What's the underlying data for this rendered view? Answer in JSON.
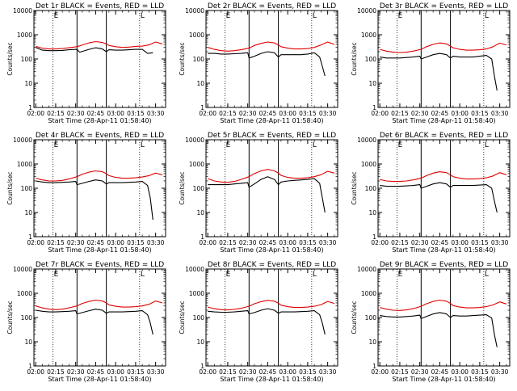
{
  "colors": {
    "events": "#000000",
    "lld": "#e00000",
    "axis": "#000000",
    "background": "#ffffff"
  },
  "chart_common": {
    "type": "line",
    "xlabel": "Start Time (28-Apr-11 01:58:40)",
    "ylabel": "Counts/sec",
    "xtick_labels": [
      "02:00",
      "02:15",
      "02:30",
      "02:45",
      "03:00",
      "03:15",
      "03:30"
    ],
    "xlim_minutes": [
      -1.33,
      97.5
    ],
    "ytick_labels": [
      "1",
      "10",
      "100",
      "1000",
      "10000"
    ],
    "ylim": [
      1,
      10000
    ],
    "yscale": "log",
    "dotted_vlines_clock": [
      "02:13",
      "03:18"
    ],
    "solid_vlines_clock": [
      "02:31",
      "02:53"
    ],
    "markers": {
      "left": "E",
      "right": "L"
    }
  },
  "chart_data": [
    {
      "type": "line",
      "title": "Det 1r BLACK = Events, RED = LLD",
      "series": [
        {
          "name": "Events",
          "color": "#000000",
          "x": [
            0,
            5,
            10,
            15,
            20,
            25,
            31,
            33,
            40,
            45,
            50,
            53,
            55,
            60,
            65,
            70,
            75,
            80,
            84,
            88
          ],
          "y": [
            300,
            230,
            220,
            220,
            225,
            240,
            250,
            190,
            250,
            290,
            260,
            200,
            240,
            230,
            230,
            240,
            250,
            250,
            170,
            180
          ]
        },
        {
          "name": "LLD",
          "color": "#e00000",
          "x": [
            0,
            5,
            10,
            15,
            20,
            25,
            31,
            35,
            40,
            45,
            50,
            53,
            55,
            60,
            65,
            70,
            75,
            80,
            85,
            90,
            95
          ],
          "y": [
            330,
            280,
            260,
            260,
            270,
            290,
            320,
            380,
            460,
            520,
            480,
            420,
            360,
            320,
            300,
            310,
            330,
            340,
            380,
            500,
            420
          ]
        }
      ]
    },
    {
      "type": "line",
      "title": "Det 2r BLACK = Events, RED = LLD",
      "series": [
        {
          "name": "Events",
          "color": "#000000",
          "x": [
            0,
            5,
            10,
            15,
            20,
            25,
            30,
            31,
            35,
            40,
            45,
            50,
            53,
            55,
            60,
            65,
            70,
            75,
            80,
            84,
            86,
            88
          ],
          "y": [
            170,
            170,
            160,
            160,
            165,
            170,
            180,
            110,
            130,
            170,
            200,
            180,
            120,
            150,
            150,
            150,
            150,
            160,
            180,
            120,
            50,
            20
          ]
        },
        {
          "name": "LLD",
          "color": "#e00000",
          "x": [
            0,
            5,
            10,
            15,
            20,
            25,
            31,
            35,
            40,
            45,
            50,
            53,
            55,
            60,
            65,
            70,
            75,
            80,
            85,
            90,
            95
          ],
          "y": [
            300,
            250,
            220,
            210,
            220,
            240,
            280,
            360,
            440,
            500,
            460,
            380,
            320,
            280,
            260,
            260,
            270,
            300,
            380,
            500,
            400
          ]
        }
      ]
    },
    {
      "type": "line",
      "title": "Det 3r BLACK = Events, RED = LLD",
      "series": [
        {
          "name": "Events",
          "color": "#000000",
          "x": [
            0,
            5,
            10,
            15,
            20,
            25,
            30,
            31,
            35,
            40,
            45,
            50,
            53,
            55,
            60,
            65,
            70,
            75,
            80,
            84,
            86,
            88
          ],
          "y": [
            120,
            110,
            110,
            110,
            115,
            120,
            130,
            100,
            120,
            150,
            170,
            150,
            110,
            130,
            120,
            120,
            120,
            130,
            140,
            100,
            20,
            5
          ]
        },
        {
          "name": "LLD",
          "color": "#e00000",
          "x": [
            0,
            5,
            10,
            15,
            20,
            25,
            31,
            35,
            40,
            45,
            50,
            53,
            55,
            60,
            65,
            70,
            75,
            80,
            85,
            90,
            95
          ],
          "y": [
            250,
            210,
            190,
            185,
            190,
            210,
            250,
            320,
            400,
            460,
            420,
            340,
            290,
            250,
            230,
            230,
            240,
            260,
            320,
            450,
            380
          ]
        }
      ]
    },
    {
      "type": "line",
      "title": "Det 4r BLACK = Events, RED = LLD",
      "series": [
        {
          "name": "Events",
          "color": "#000000",
          "x": [
            0,
            5,
            10,
            15,
            20,
            25,
            30,
            31,
            35,
            40,
            45,
            50,
            53,
            55,
            60,
            65,
            70,
            75,
            80,
            84,
            86,
            88
          ],
          "y": [
            200,
            180,
            170,
            170,
            175,
            180,
            190,
            140,
            160,
            190,
            220,
            200,
            150,
            170,
            170,
            170,
            175,
            180,
            190,
            130,
            40,
            5
          ]
        },
        {
          "name": "LLD",
          "color": "#e00000",
          "x": [
            0,
            5,
            10,
            15,
            20,
            25,
            31,
            35,
            40,
            45,
            50,
            53,
            55,
            60,
            65,
            70,
            75,
            80,
            85,
            90,
            95
          ],
          "y": [
            260,
            220,
            200,
            200,
            210,
            240,
            300,
            380,
            460,
            520,
            480,
            400,
            330,
            280,
            260,
            260,
            270,
            290,
            330,
            420,
            360
          ]
        }
      ]
    },
    {
      "type": "line",
      "title": "Det 5r BLACK = Events, RED = LLD",
      "series": [
        {
          "name": "Events",
          "color": "#000000",
          "x": [
            0,
            5,
            10,
            15,
            20,
            25,
            30,
            31,
            35,
            40,
            45,
            50,
            53,
            55,
            60,
            65,
            70,
            75,
            80,
            84,
            86,
            88
          ],
          "y": [
            140,
            140,
            140,
            140,
            150,
            160,
            170,
            110,
            150,
            230,
            300,
            230,
            140,
            180,
            200,
            210,
            220,
            230,
            250,
            160,
            40,
            10
          ]
        },
        {
          "name": "LLD",
          "color": "#e00000",
          "x": [
            0,
            5,
            10,
            15,
            20,
            25,
            31,
            35,
            40,
            45,
            50,
            53,
            55,
            60,
            65,
            70,
            75,
            80,
            85,
            90,
            95
          ],
          "y": [
            250,
            200,
            180,
            175,
            190,
            230,
            300,
            400,
            520,
            600,
            520,
            420,
            340,
            280,
            260,
            260,
            270,
            300,
            360,
            500,
            420
          ]
        }
      ]
    },
    {
      "type": "line",
      "title": "Det 6r BLACK = Events, RED = LLD",
      "series": [
        {
          "name": "Events",
          "color": "#000000",
          "x": [
            0,
            5,
            10,
            15,
            20,
            25,
            30,
            31,
            35,
            40,
            45,
            50,
            53,
            55,
            60,
            65,
            70,
            75,
            80,
            84,
            86,
            88
          ],
          "y": [
            130,
            120,
            120,
            120,
            125,
            130,
            140,
            100,
            120,
            150,
            170,
            150,
            110,
            130,
            130,
            130,
            130,
            135,
            140,
            100,
            30,
            10
          ]
        },
        {
          "name": "LLD",
          "color": "#e00000",
          "x": [
            0,
            5,
            10,
            15,
            20,
            25,
            31,
            35,
            40,
            45,
            50,
            53,
            55,
            60,
            65,
            70,
            75,
            80,
            85,
            90,
            95
          ],
          "y": [
            230,
            200,
            190,
            190,
            200,
            220,
            260,
            330,
            420,
            480,
            440,
            360,
            300,
            260,
            240,
            240,
            250,
            270,
            320,
            440,
            360
          ]
        }
      ]
    },
    {
      "type": "line",
      "title": "Det 7r BLACK = Events, RED = LLD",
      "series": [
        {
          "name": "Events",
          "color": "#000000",
          "x": [
            0,
            5,
            10,
            15,
            20,
            25,
            30,
            31,
            35,
            40,
            45,
            50,
            53,
            55,
            60,
            65,
            70,
            75,
            80,
            84,
            86,
            88
          ],
          "y": [
            200,
            180,
            170,
            170,
            175,
            180,
            190,
            140,
            160,
            190,
            220,
            200,
            150,
            170,
            170,
            170,
            175,
            180,
            190,
            130,
            60,
            20
          ]
        },
        {
          "name": "LLD",
          "color": "#e00000",
          "x": [
            0,
            5,
            10,
            15,
            20,
            25,
            31,
            35,
            40,
            45,
            50,
            53,
            55,
            60,
            65,
            70,
            75,
            80,
            85,
            90,
            95
          ],
          "y": [
            300,
            250,
            220,
            210,
            220,
            250,
            300,
            380,
            460,
            520,
            480,
            400,
            330,
            290,
            270,
            270,
            280,
            300,
            350,
            480,
            400
          ]
        }
      ]
    },
    {
      "type": "line",
      "title": "Det 8r BLACK = Events, RED = LLD",
      "series": [
        {
          "name": "Events",
          "color": "#000000",
          "x": [
            0,
            5,
            10,
            15,
            20,
            25,
            30,
            31,
            35,
            40,
            45,
            50,
            53,
            55,
            60,
            65,
            70,
            75,
            80,
            84,
            86,
            88
          ],
          "y": [
            180,
            170,
            165,
            165,
            170,
            180,
            190,
            140,
            160,
            200,
            230,
            200,
            150,
            170,
            170,
            170,
            175,
            180,
            190,
            130,
            60,
            20
          ]
        },
        {
          "name": "LLD",
          "color": "#e00000",
          "x": [
            0,
            5,
            10,
            15,
            20,
            25,
            31,
            35,
            40,
            45,
            50,
            53,
            55,
            60,
            65,
            70,
            75,
            80,
            85,
            90,
            95
          ],
          "y": [
            270,
            230,
            210,
            205,
            215,
            240,
            290,
            370,
            450,
            510,
            470,
            390,
            320,
            280,
            260,
            260,
            270,
            290,
            340,
            460,
            380
          ]
        }
      ]
    },
    {
      "type": "line",
      "title": "Det 9r BLACK = Events, RED = LLD",
      "series": [
        {
          "name": "Events",
          "color": "#000000",
          "x": [
            0,
            5,
            10,
            15,
            20,
            25,
            30,
            31,
            35,
            40,
            45,
            50,
            53,
            55,
            60,
            65,
            70,
            75,
            80,
            84,
            86,
            88
          ],
          "y": [
            120,
            110,
            105,
            105,
            110,
            115,
            125,
            90,
            110,
            140,
            160,
            140,
            100,
            120,
            115,
            115,
            120,
            125,
            130,
            95,
            20,
            6
          ]
        },
        {
          "name": "LLD",
          "color": "#e00000",
          "x": [
            0,
            5,
            10,
            15,
            20,
            25,
            31,
            35,
            40,
            45,
            50,
            53,
            55,
            60,
            65,
            70,
            75,
            80,
            85,
            90,
            95
          ],
          "y": [
            260,
            220,
            200,
            195,
            205,
            230,
            290,
            370,
            460,
            520,
            470,
            380,
            310,
            270,
            250,
            250,
            260,
            280,
            330,
            440,
            360
          ]
        }
      ]
    }
  ]
}
